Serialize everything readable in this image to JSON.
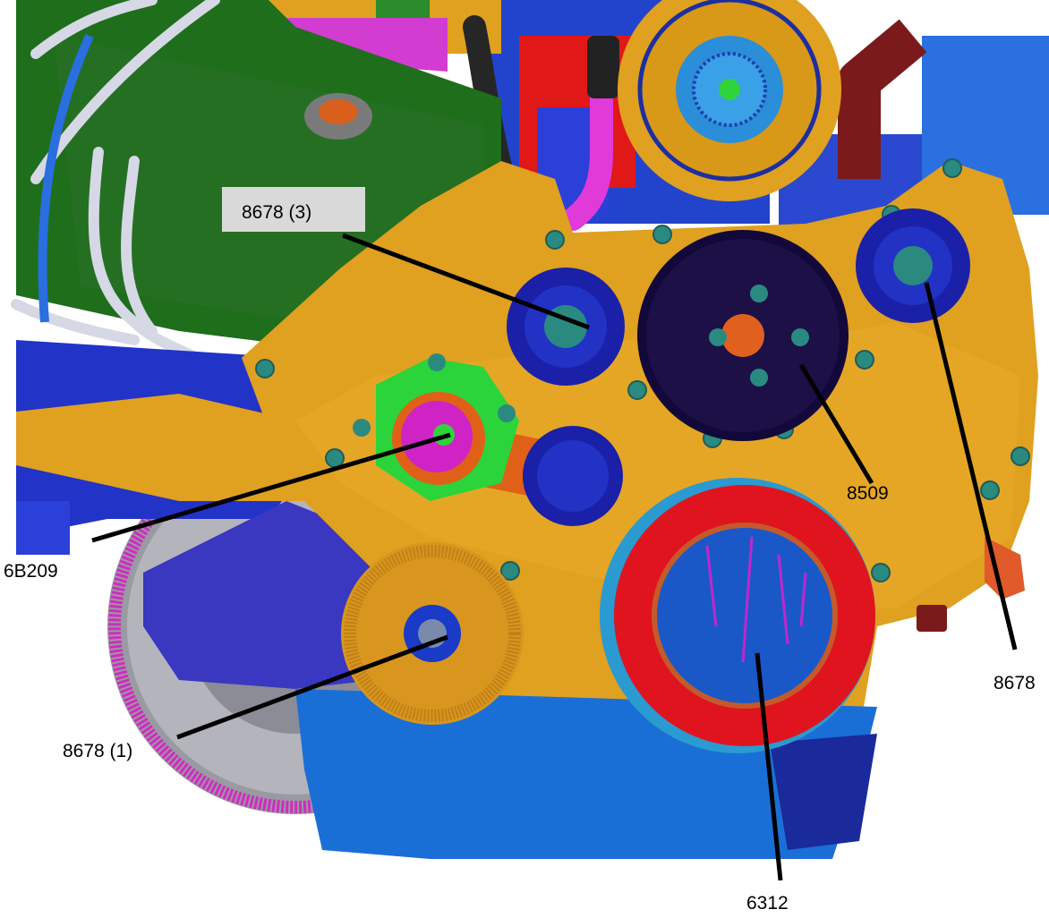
{
  "colors": {
    "housing_orange": "#e0a020",
    "pulley_dark": "#12083a",
    "damper_red": "#e0141e",
    "damper_blue": "#1a58c8",
    "intake_green": "#1e6e1c",
    "oil_pan_blue": "#1a6fd6",
    "bracket_purple": "#3a38c0",
    "flywheel_magenta": "#d02cc0",
    "leader_line": "#000000",
    "label_box": "#d9d9d9"
  },
  "callouts": [
    {
      "id": "8678-3",
      "label": "8678 (3)"
    },
    {
      "id": "8509",
      "label": "8509"
    },
    {
      "id": "8678-right",
      "label": "8678"
    },
    {
      "id": "6B209",
      "label": "6B209"
    },
    {
      "id": "8678-1",
      "label": "8678 (1)"
    },
    {
      "id": "6312",
      "label": "6312"
    }
  ]
}
